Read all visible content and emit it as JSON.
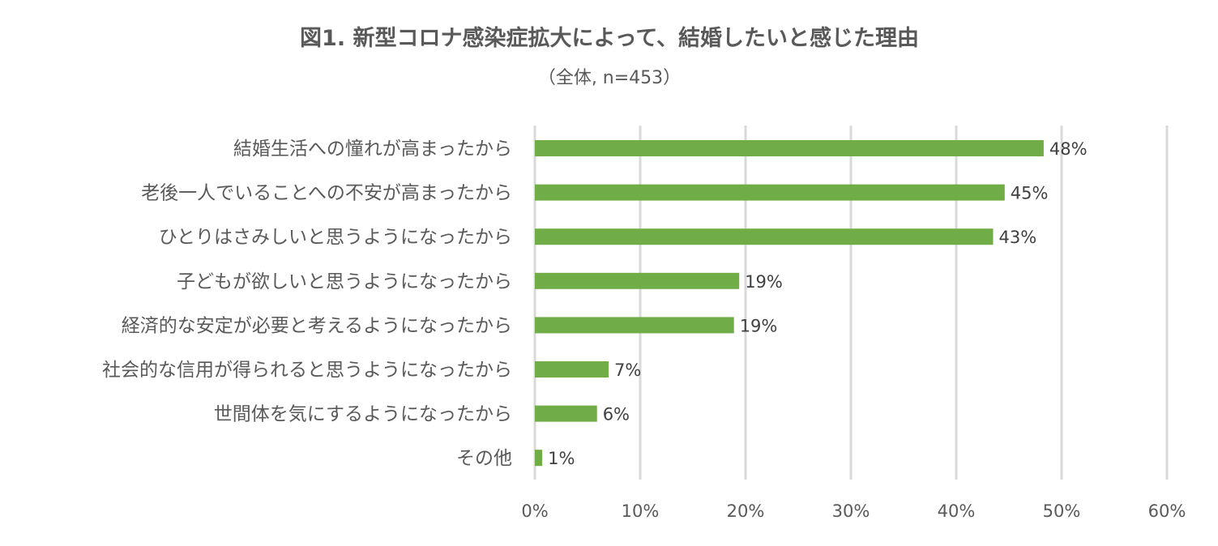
{
  "chart_data": {
    "type": "bar",
    "orientation": "horizontal",
    "title": "図1. 新型コロナ感染症拡大によって、結婚したいと感じた理由",
    "subtitle": "（全体, n=453）",
    "categories": [
      "結婚生活への憧れが高まったから",
      "老後一人でいることへの不安が高まったから",
      "ひとりはさみしいと思うようになったから",
      "子どもが欲しいと思うようになったから",
      "経済的な安定が必要と考えるようになったから",
      "社会的な信用が得られると思うようになったから",
      "世間体を気にするようになったから",
      "その他"
    ],
    "values": [
      48.3,
      44.6,
      43.5,
      19.4,
      18.9,
      7.0,
      5.9,
      0.7
    ],
    "data_labels": [
      "48%",
      "45%",
      "43%",
      "19%",
      "19%",
      "7%",
      "6%",
      "1%"
    ],
    "xlim": [
      0,
      60
    ],
    "ticks": [
      0,
      10,
      20,
      30,
      40,
      50,
      60
    ],
    "tick_labels": [
      "0%",
      "10%",
      "20%",
      "30%",
      "40%",
      "50%",
      "60%"
    ],
    "grid": true,
    "legend": "none",
    "colors": {
      "bar": "#70ad47",
      "grid": "#d9d9d9",
      "text": "#595959"
    }
  }
}
